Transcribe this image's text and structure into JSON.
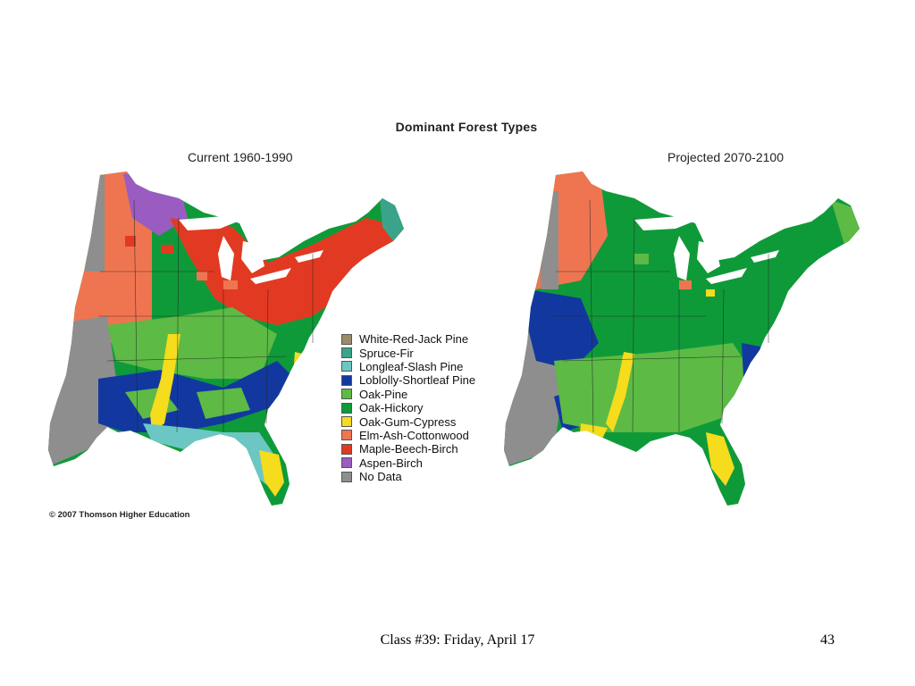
{
  "figure_title": "Dominant Forest Types",
  "panels": {
    "current": {
      "title": "Current 1960-1990"
    },
    "projected": {
      "title": "Projected 2070-2100"
    }
  },
  "legend": [
    {
      "label": "White-Red-Jack Pine",
      "color": "#9b8b6a"
    },
    {
      "label": "Spruce-Fir",
      "color": "#3aa389"
    },
    {
      "label": "Longleaf-Slash Pine",
      "color": "#6cc7c4"
    },
    {
      "label": "Loblolly-Shortleaf Pine",
      "color": "#1238a0"
    },
    {
      "label": "Oak-Pine",
      "color": "#5cba45"
    },
    {
      "label": "Oak-Hickory",
      "color": "#0f9a39"
    },
    {
      "label": "Oak-Gum-Cypress",
      "color": "#f5dc1c"
    },
    {
      "label": "Elm-Ash-Cottonwood",
      "color": "#ef7551"
    },
    {
      "label": "Maple-Beech-Birch",
      "color": "#e23a22"
    },
    {
      "label": "Aspen-Birch",
      "color": "#9a5cc0"
    },
    {
      "label": "No Data",
      "color": "#8e8e8e"
    }
  ],
  "copyright": "© 2007 Thomson Higher Education",
  "footer": "Class #39: Friday, April 17",
  "page_number": "43"
}
